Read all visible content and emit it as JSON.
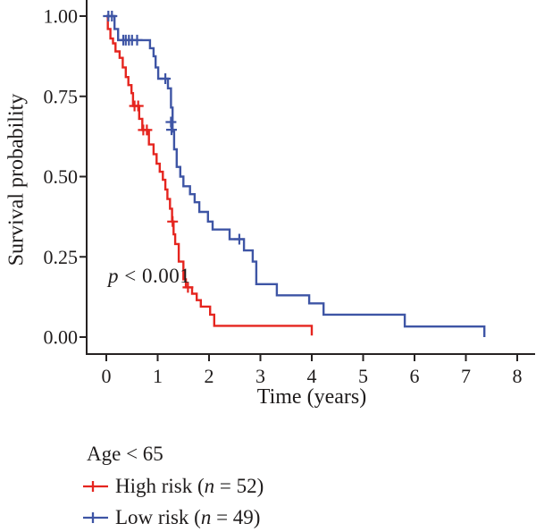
{
  "figure": {
    "background": "#ffffff",
    "text_color": "#1f1c1c",
    "axis_color": "#262222"
  },
  "annotation": {
    "italic": "p",
    "text": " < 0.001"
  },
  "legend": {
    "title": "Age < 65",
    "entries": [
      {
        "id": "high-risk",
        "pre": "High risk (",
        "n": "n",
        "post": " = 52)",
        "color": "#e5251f"
      },
      {
        "id": "low-risk",
        "pre": "Low risk (",
        "n": "n",
        "post": " = 49)",
        "color": "#3e55a5"
      }
    ]
  },
  "chart_data": {
    "type": "line",
    "subtype": "kaplan_meier_step",
    "title": "",
    "xlabel": "Time (years)",
    "ylabel": "Survival probability",
    "xlim": [
      0,
      8
    ],
    "ylim": [
      0,
      1
    ],
    "grid": false,
    "legend_position": "bottom-left",
    "xticks": [
      0,
      1,
      2,
      3,
      4,
      5,
      6,
      7,
      8
    ],
    "ytick_values": [
      0,
      0.25,
      0.5,
      0.75,
      1
    ],
    "ytick_labels": [
      "0.00",
      "0.25",
      "0.50",
      "0.75",
      "1.00"
    ],
    "annotation": {
      "label": "p < 0.001",
      "x": 0.07,
      "y": 0.17
    },
    "series": [
      {
        "id": "high-risk",
        "name": "High risk",
        "n": 52,
        "color": "#e5251f",
        "steps": [
          [
            0,
            1.0
          ],
          [
            0.03,
            0.96
          ],
          [
            0.08,
            0.93
          ],
          [
            0.13,
            0.915
          ],
          [
            0.18,
            0.89
          ],
          [
            0.26,
            0.87
          ],
          [
            0.32,
            0.84
          ],
          [
            0.38,
            0.81
          ],
          [
            0.43,
            0.785
          ],
          [
            0.49,
            0.76
          ],
          [
            0.52,
            0.72
          ],
          [
            0.64,
            0.68
          ],
          [
            0.7,
            0.645
          ],
          [
            0.83,
            0.6
          ],
          [
            0.92,
            0.57
          ],
          [
            0.98,
            0.54
          ],
          [
            1.04,
            0.515
          ],
          [
            1.1,
            0.49
          ],
          [
            1.15,
            0.46
          ],
          [
            1.19,
            0.43
          ],
          [
            1.24,
            0.4
          ],
          [
            1.28,
            0.36
          ],
          [
            1.31,
            0.32
          ],
          [
            1.34,
            0.29
          ],
          [
            1.41,
            0.235
          ],
          [
            1.5,
            0.18
          ],
          [
            1.55,
            0.155
          ],
          [
            1.67,
            0.135
          ],
          [
            1.76,
            0.115
          ],
          [
            1.84,
            0.095
          ],
          [
            2.02,
            0.07
          ],
          [
            2.1,
            0.035
          ],
          [
            4.0,
            0.005
          ]
        ],
        "censors": [
          [
            0.55,
            0.72
          ],
          [
            0.62,
            0.72
          ],
          [
            0.72,
            0.645
          ],
          [
            0.79,
            0.645
          ],
          [
            1.29,
            0.36
          ],
          [
            1.59,
            0.155
          ]
        ]
      },
      {
        "id": "low-risk",
        "name": "Low risk",
        "n": 49,
        "color": "#3e55a5",
        "steps": [
          [
            0,
            1.0
          ],
          [
            0.16,
            0.96
          ],
          [
            0.23,
            0.925
          ],
          [
            0.85,
            0.9
          ],
          [
            0.92,
            0.875
          ],
          [
            0.96,
            0.84
          ],
          [
            1.01,
            0.805
          ],
          [
            1.2,
            0.775
          ],
          [
            1.26,
            0.715
          ],
          [
            1.29,
            0.64
          ],
          [
            1.32,
            0.585
          ],
          [
            1.37,
            0.53
          ],
          [
            1.44,
            0.5
          ],
          [
            1.5,
            0.47
          ],
          [
            1.63,
            0.445
          ],
          [
            1.72,
            0.42
          ],
          [
            1.81,
            0.39
          ],
          [
            1.98,
            0.36
          ],
          [
            2.07,
            0.335
          ],
          [
            2.4,
            0.305
          ],
          [
            2.68,
            0.27
          ],
          [
            2.85,
            0.235
          ],
          [
            2.92,
            0.165
          ],
          [
            3.32,
            0.13
          ],
          [
            3.95,
            0.105
          ],
          [
            4.23,
            0.07
          ],
          [
            5.81,
            0.033
          ],
          [
            7.36,
            0.0
          ]
        ],
        "censors": [
          [
            0.04,
            1.0
          ],
          [
            0.11,
            1.0
          ],
          [
            0.33,
            0.925
          ],
          [
            0.38,
            0.925
          ],
          [
            0.44,
            0.925
          ],
          [
            0.5,
            0.925
          ],
          [
            0.6,
            0.925
          ],
          [
            1.15,
            0.805
          ],
          [
            1.26,
            0.67
          ],
          [
            1.27,
            0.646
          ],
          [
            2.59,
            0.305
          ]
        ]
      }
    ]
  }
}
